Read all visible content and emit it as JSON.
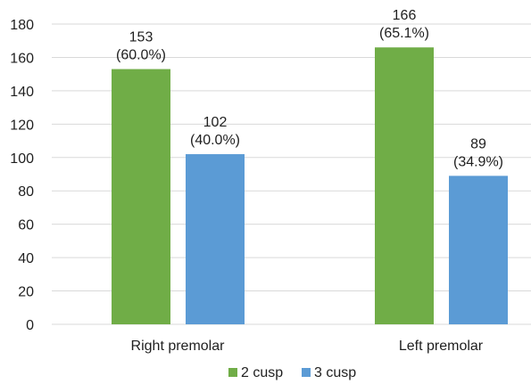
{
  "chart_data": {
    "type": "bar",
    "title": "",
    "xlabel": "",
    "ylabel": "",
    "categories": [
      "Right premolar",
      "Left premolar"
    ],
    "series": [
      {
        "name": "2 cusp",
        "color": "#70ad47",
        "values": [
          153,
          166
        ],
        "labels": [
          [
            "153",
            "(60.0%)"
          ],
          [
            "166",
            "(65.1%)"
          ]
        ]
      },
      {
        "name": "3 cusp",
        "color": "#5b9bd5",
        "values": [
          102,
          89
        ],
        "labels": [
          [
            "102",
            "(40.0%)"
          ],
          [
            "89",
            "(34.9%)"
          ]
        ]
      }
    ],
    "ylim": [
      0,
      180
    ],
    "yticks": [
      0,
      20,
      40,
      60,
      80,
      100,
      120,
      140,
      160,
      180
    ],
    "grid": true,
    "gridline_color": "#d9d9d9",
    "legend_position": "bottom"
  }
}
